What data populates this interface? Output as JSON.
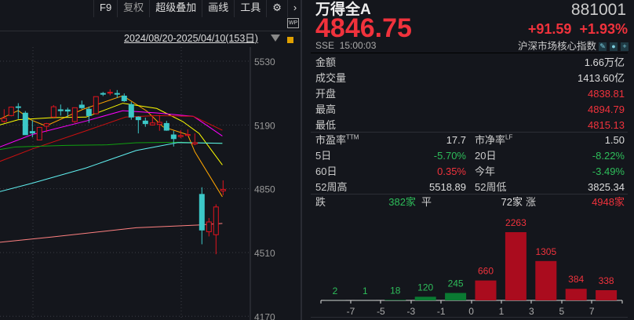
{
  "toolbar": {
    "items": [
      "F9",
      "复权",
      "超级叠加",
      "画线",
      "工具"
    ],
    "settings_icon": "gear-icon",
    "more_icon": "chevron-right-icon",
    "wp_label": "WP"
  },
  "chart": {
    "date_range": "2024/08/20-2025/04/10(153日)",
    "y_ticks": [
      5530,
      5190,
      4850,
      4510,
      4170
    ],
    "up_color": "#e0141e",
    "down_color": "#3cc8c8",
    "candles": [
      [
        5209,
        5274,
        5201,
        5226
      ],
      [
        5240,
        5288,
        5236,
        5285
      ],
      [
        5287,
        5306,
        5222,
        5284
      ],
      [
        5253,
        5264,
        5138,
        5138
      ],
      [
        5155,
        5215,
        5124,
        5147
      ],
      [
        5110,
        5180,
        5110,
        5177
      ],
      [
        5183,
        5201,
        5152,
        5197
      ],
      [
        5232,
        5296,
        5229,
        5287
      ],
      [
        5271,
        5299,
        5240,
        5266
      ],
      [
        5270,
        5282,
        5232,
        5264
      ],
      [
        5208,
        5282,
        5201,
        5282
      ],
      [
        5296,
        5320,
        5274,
        5282
      ],
      [
        5274,
        5288,
        5201,
        5240
      ],
      [
        5250,
        5341,
        5246,
        5341
      ],
      [
        5358,
        5366,
        5344,
        5354
      ],
      [
        5361,
        5380,
        5348,
        5364
      ],
      [
        5358,
        5376,
        5334,
        5355
      ],
      [
        5344,
        5358,
        5313,
        5319
      ],
      [
        5299,
        5313,
        5218,
        5232
      ],
      [
        5232,
        5236,
        5145,
        5218
      ],
      [
        5211,
        5229,
        5180,
        5197
      ],
      [
        5190,
        5236,
        5187,
        5201
      ],
      [
        5193,
        5243,
        5159,
        5204
      ],
      [
        5198,
        5212,
        5159,
        5162
      ],
      [
        5137,
        5159,
        5075,
        5117
      ],
      [
        5128,
        5162,
        5120,
        5134
      ],
      [
        5134,
        5166,
        5131,
        5139
      ],
      [
        5089,
        5145,
        5082,
        5096
      ],
      [
        4820,
        4858,
        4554,
        4630
      ],
      [
        4621,
        4694,
        4596,
        4673
      ],
      [
        4605,
        4767,
        4501,
        4753
      ],
      [
        4838.81,
        4894.79,
        4815.13,
        4846.75
      ]
    ],
    "ma_lines": [
      {
        "color": "#ffa500",
        "points": [
          [
            0.4,
            5222
          ],
          [
            3,
            5267
          ],
          [
            4.9,
            5215
          ],
          [
            6.9,
            5185
          ],
          [
            12.2,
            5274
          ],
          [
            17.8,
            5346
          ],
          [
            21.2,
            5264
          ],
          [
            23.5,
            5180
          ],
          [
            27,
            5138
          ],
          [
            28,
            5047
          ],
          [
            31.9,
            4807
          ]
        ]
      },
      {
        "color": "#ffff00",
        "points": [
          [
            0.4,
            5190
          ],
          [
            3,
            5218
          ],
          [
            7.8,
            5229
          ],
          [
            12.6,
            5232
          ],
          [
            17.8,
            5306
          ],
          [
            22.6,
            5278
          ],
          [
            26.3,
            5208
          ],
          [
            28.6,
            5145
          ],
          [
            31.9,
            4977
          ]
        ]
      },
      {
        "color": "#ff00ff",
        "points": [
          [
            0.4,
            5073
          ],
          [
            4.9,
            5138
          ],
          [
            12.6,
            5211
          ],
          [
            17.8,
            5266
          ],
          [
            22.6,
            5254
          ],
          [
            27.8,
            5236
          ],
          [
            30,
            5180
          ],
          [
            31.9,
            5131
          ]
        ]
      },
      {
        "color": "#cc1010",
        "points": [
          [
            0.4,
            4996
          ],
          [
            4.9,
            5061
          ],
          [
            12.6,
            5159
          ],
          [
            18.2,
            5232
          ],
          [
            22.6,
            5240
          ],
          [
            27.8,
            5236
          ],
          [
            31.9,
            5162
          ]
        ]
      },
      {
        "color": "#10a010",
        "points": [
          [
            0.4,
            5059
          ],
          [
            2.6,
            5073
          ],
          [
            9.7,
            5081
          ],
          [
            15.6,
            5084
          ],
          [
            19.7,
            5095
          ],
          [
            25.6,
            5098
          ],
          [
            31.9,
            5092
          ]
        ]
      },
      {
        "color": "#60f0f0",
        "points": [
          [
            0.4,
            4835
          ],
          [
            4.9,
            4879
          ],
          [
            12.6,
            4961
          ],
          [
            19.7,
            5054
          ],
          [
            25.6,
            5096
          ],
          [
            31.9,
            5092
          ]
        ]
      },
      {
        "color": "#ff8080",
        "points": [
          [
            0.4,
            4565
          ],
          [
            7.8,
            4593
          ],
          [
            19.7,
            4642
          ],
          [
            28.6,
            4657
          ],
          [
            31.9,
            4665
          ]
        ]
      }
    ]
  },
  "quote": {
    "name": "万得全A",
    "code": "881001",
    "price": "4846.75",
    "change": "+91.59",
    "change_pct": "+1.93%",
    "exchange": "SSE",
    "time": "15:00:03",
    "category": "沪深市场核心指数",
    "accent_up": "#f0323c",
    "accent_down": "#2ebd5a"
  },
  "stats": [
    {
      "label": "金额",
      "value": "1.66万亿",
      "color": "w"
    },
    {
      "label": "成交量",
      "value": "1413.60亿",
      "color": "w"
    },
    {
      "label": "开盘",
      "value": "4838.81",
      "color": "r"
    },
    {
      "label": "最高",
      "value": "4894.79",
      "color": "r"
    },
    {
      "label": "最低",
      "value": "4815.13",
      "color": "r"
    }
  ],
  "ratios": [
    {
      "l1": "市盈率",
      "s1": "TTM",
      "v1": "17.7",
      "c1": "w",
      "l2": "市净率",
      "s2": "LF",
      "v2": "1.50",
      "c2": "w"
    },
    {
      "l1": "5日",
      "s1": "",
      "v1": "-5.70%",
      "c1": "g",
      "l2": "20日",
      "s2": "",
      "v2": "-8.22%",
      "c2": "g"
    },
    {
      "l1": "60日",
      "s1": "",
      "v1": "0.35%",
      "c1": "r",
      "l2": "今年",
      "s2": "",
      "v2": "-3.49%",
      "c2": "g"
    },
    {
      "l1": "52周高",
      "s1": "",
      "v1": "5518.89",
      "c1": "w",
      "l2": "52周低",
      "s2": "",
      "v2": "3825.34",
      "c2": "w"
    }
  ],
  "breadth": {
    "down_label": "跌",
    "down": "382家",
    "flat_label": "平",
    "flat": "72家",
    "up_label": "涨",
    "up": "4948家"
  },
  "histogram": {
    "categories": [
      "<-7",
      "-7~-5",
      "-5~-3",
      "-3~-1",
      "-1~0",
      "0~1",
      "1~3",
      "3~5",
      "5~7",
      ">7"
    ],
    "values": [
      2,
      1,
      18,
      120,
      245,
      660,
      2263,
      1305,
      384,
      338
    ],
    "x_ticks": [
      "-7",
      "-5",
      "-3",
      "-1",
      "0",
      "1",
      "3",
      "5",
      "7"
    ]
  }
}
